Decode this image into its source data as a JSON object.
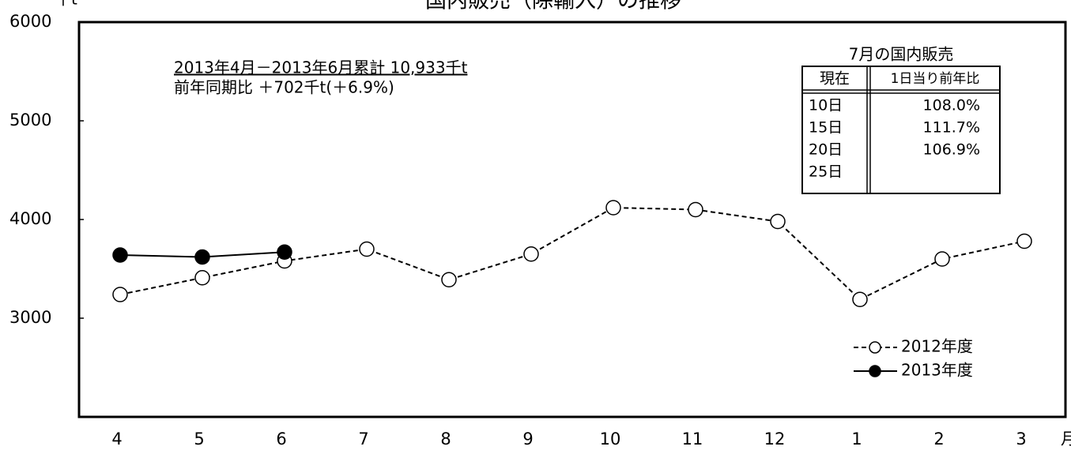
{
  "chart_data": {
    "type": "line",
    "title": "国内販売（除輸入）の推移",
    "ylabel": "千t",
    "xlabel": "月",
    "categories": [
      "4",
      "5",
      "6",
      "7",
      "8",
      "9",
      "10",
      "11",
      "12",
      "1",
      "2",
      "3"
    ],
    "ylim": [
      2000,
      6000
    ],
    "yticks": [
      3000,
      4000,
      5000,
      6000
    ],
    "grid": false,
    "legend": "lower right",
    "series": [
      {
        "name": "2012年度",
        "color": "#000000",
        "marker_fill": "#ffffff",
        "dashed": true,
        "values": [
          3240,
          3410,
          3580,
          3700,
          3390,
          3650,
          4120,
          4100,
          3980,
          3190,
          3600,
          3780
        ]
      },
      {
        "name": "2013年度",
        "color": "#000000",
        "marker_fill": "#000000",
        "dashed": false,
        "values": [
          3640,
          3620,
          3670,
          null,
          null,
          null,
          null,
          null,
          null,
          null,
          null,
          null
        ]
      }
    ],
    "annotations": [
      "2013年4月－2013年6月累計 10,933千t",
      "前年同期比 ＋702千t(＋6.9%)"
    ],
    "table": {
      "title": "7月の国内販売",
      "columns": [
        "現在",
        "1日当り前年比"
      ],
      "rows": [
        [
          "10日",
          "108.0%"
        ],
        [
          "15日",
          "111.7%"
        ],
        [
          "20日",
          "106.9%"
        ],
        [
          "25日"
        ]
      ]
    }
  }
}
